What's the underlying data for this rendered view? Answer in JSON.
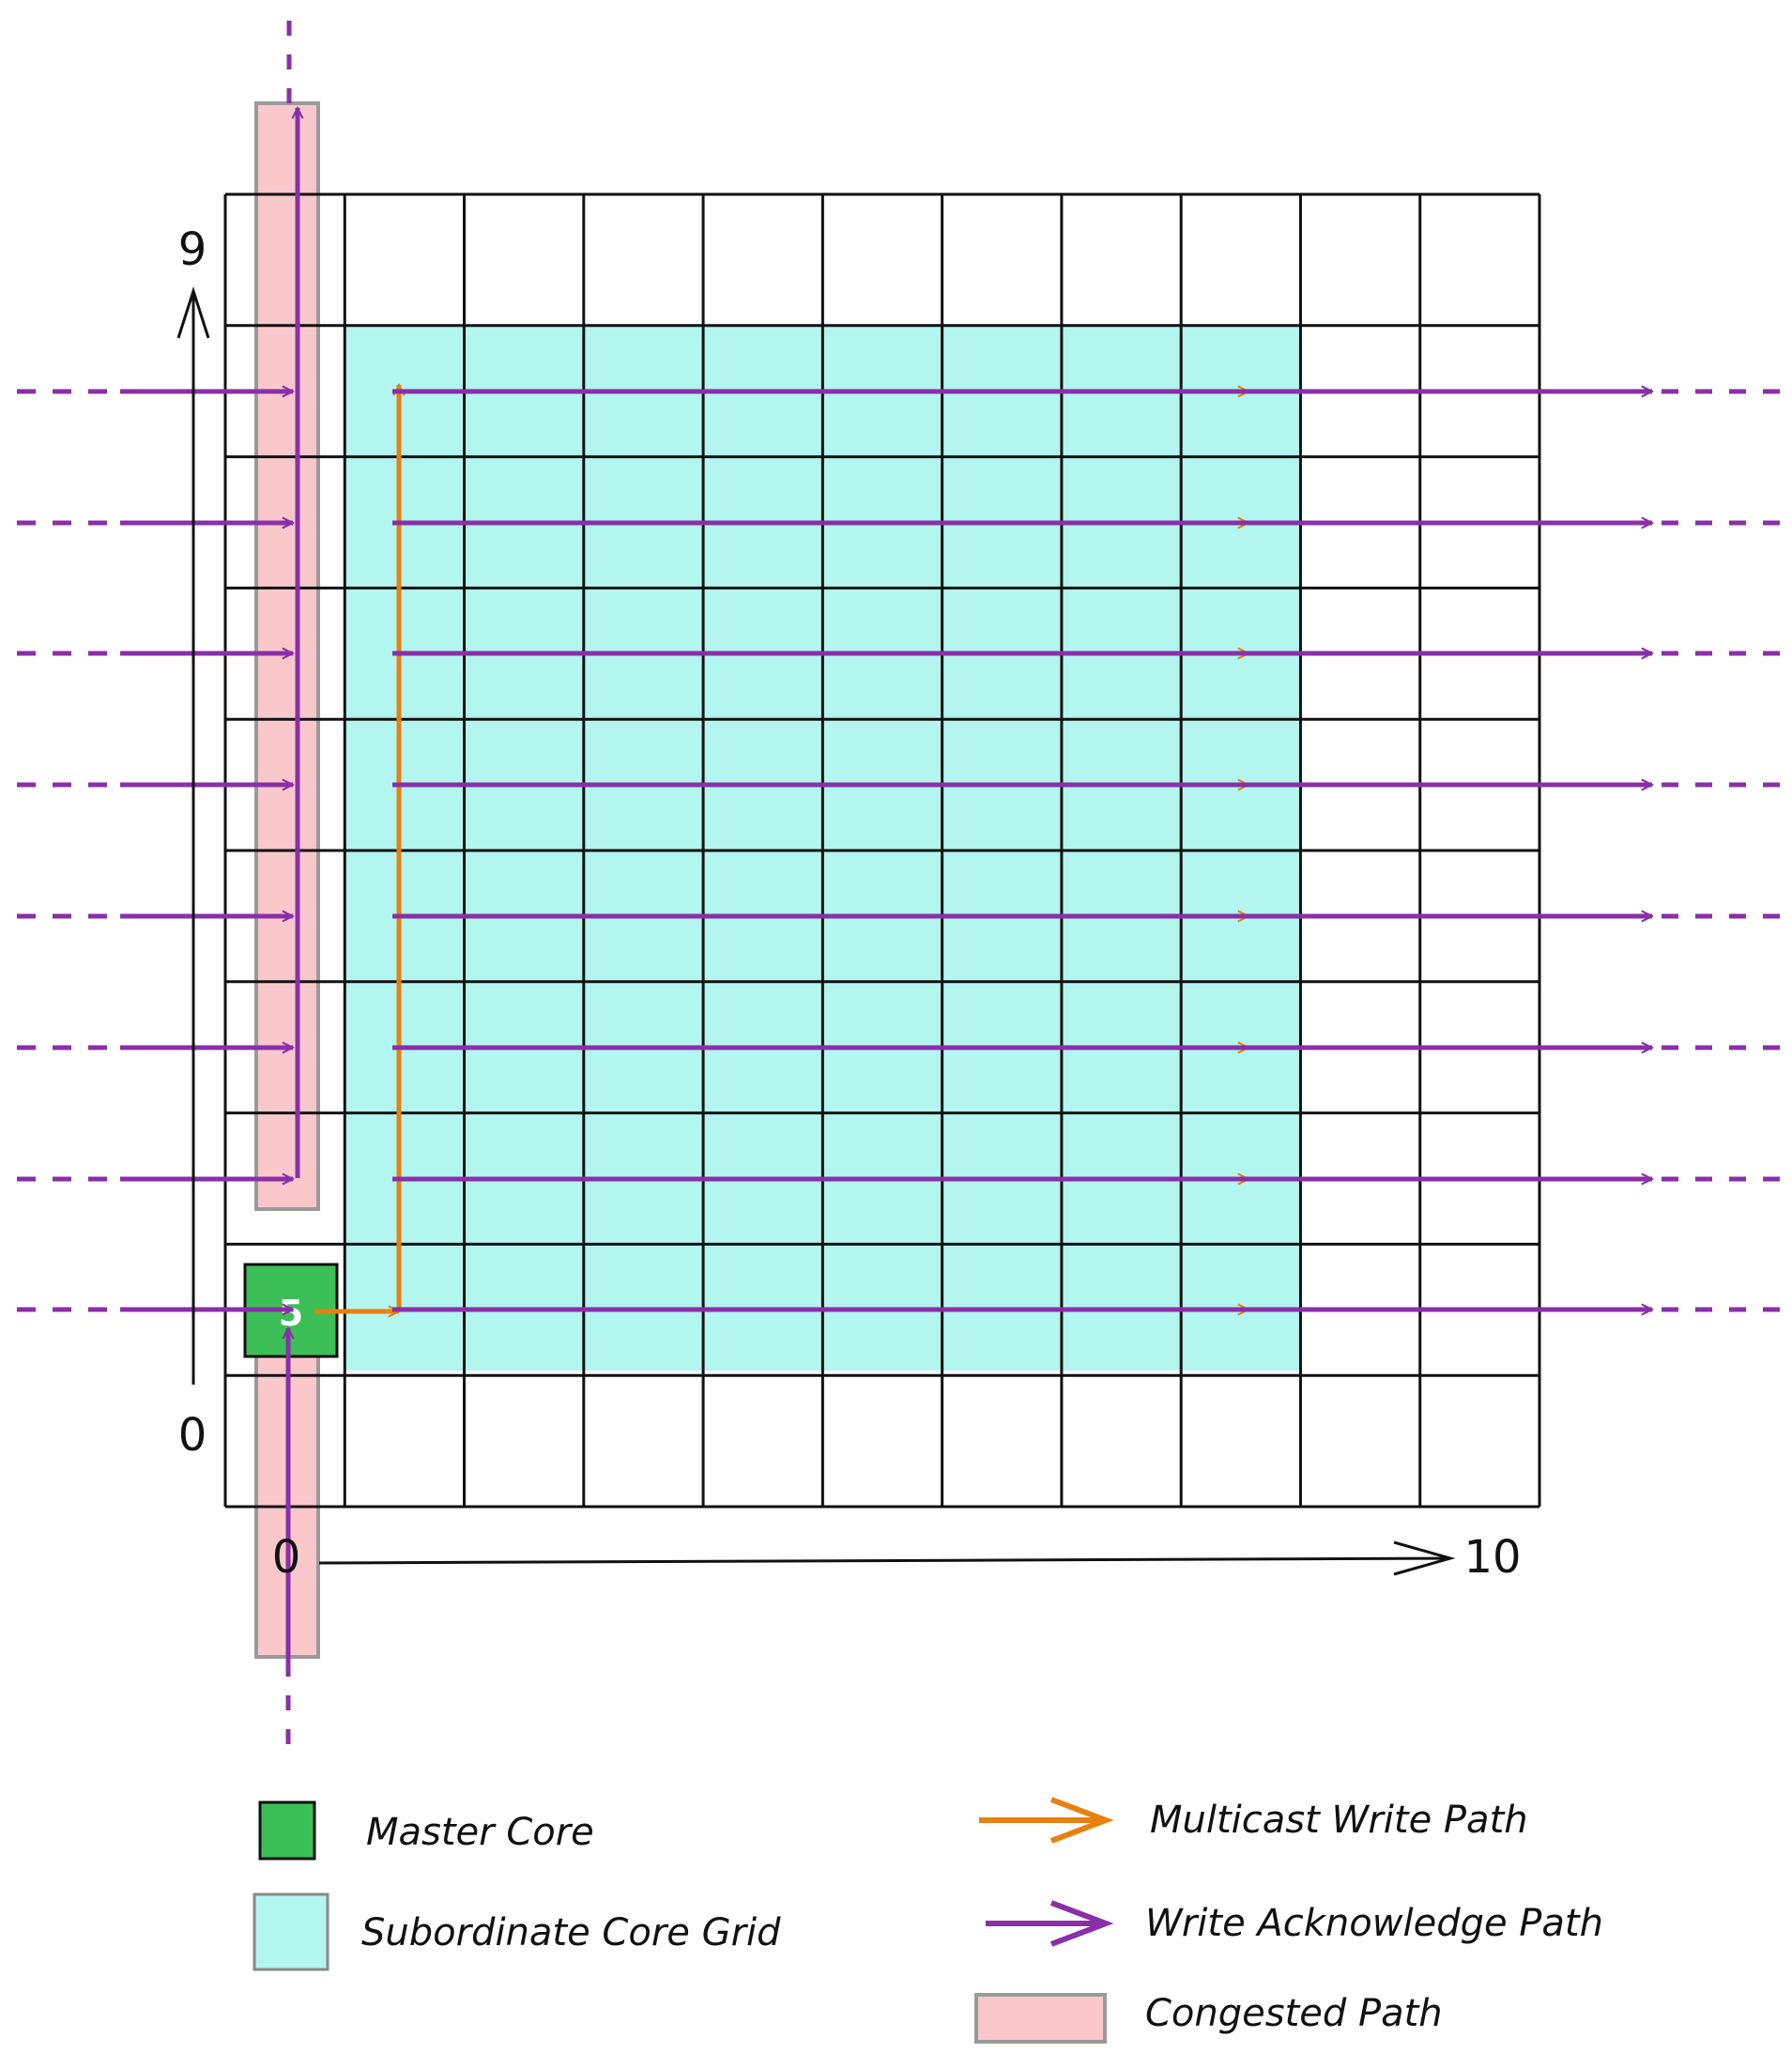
{
  "axes": {
    "y_max_label": "9",
    "y_min_label": "0",
    "x_min_label": "0",
    "x_max_label": "10"
  },
  "master_core": {
    "label": "5"
  },
  "colors": {
    "master": "#3cbf56",
    "subordinate": "#b2f6ef",
    "multicast": "#e8800f",
    "ack": "#8a2fa8",
    "congested": "#fac8cb",
    "grid_line": "#111111"
  },
  "legend": {
    "master_core": "Master Core",
    "subordinate_grid": "Subordinate Core Grid",
    "multicast_path": "Multicast Write Path",
    "ack_path": "Write Acknowledge Path",
    "congested_path": "Congested Path"
  }
}
